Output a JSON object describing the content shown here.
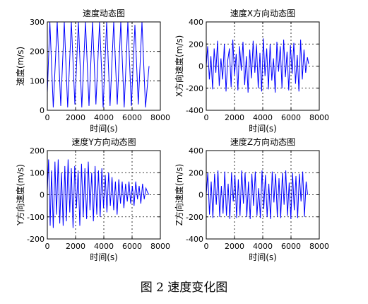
{
  "caption": "图 2  速度变化图",
  "chart_data": [
    {
      "type": "line",
      "title": "速度动态图",
      "xlabel": "时间(s)",
      "ylabel": "速度(m/s)",
      "xlim": [
        0,
        8000
      ],
      "ylim": [
        0,
        300
      ],
      "xticks": [
        0,
        2000,
        4000,
        6000,
        8000
      ],
      "yticks": [
        0,
        100,
        200,
        300
      ],
      "grid": true,
      "series_color": "#0000ff",
      "series": [
        {
          "x": [
            0,
            180,
            420,
            700,
            950,
            1200,
            1440,
            1700,
            1950,
            2200,
            2440,
            2700,
            2950,
            3200,
            3440,
            3700,
            3950,
            4200,
            4440,
            4700,
            4950,
            5200,
            5440,
            5700,
            5950,
            6200,
            6440,
            6700,
            6950,
            7200
          ],
          "y": [
            60,
            300,
            10,
            300,
            15,
            300,
            10,
            300,
            20,
            300,
            10,
            300,
            15,
            300,
            20,
            300,
            10,
            300,
            15,
            300,
            20,
            300,
            10,
            300,
            15,
            290,
            20,
            300,
            10,
            150
          ]
        }
      ]
    },
    {
      "type": "line",
      "title": "速度X方向动态图",
      "xlabel": "时间(s)",
      "ylabel": "X方向速度(m/s)",
      "xlim": [
        0,
        8000
      ],
      "ylim": [
        -400,
        400
      ],
      "xticks": [
        0,
        2000,
        4000,
        6000,
        8000
      ],
      "yticks": [
        -400,
        -200,
        0,
        200,
        400
      ],
      "grid": true,
      "series_color": "#0000ff",
      "series": [
        {
          "x": [
            0,
            100,
            220,
            330,
            450,
            560,
            680,
            800,
            920,
            1040,
            1160,
            1280,
            1400,
            1520,
            1640,
            1760,
            1880,
            2000,
            2120,
            2240,
            2360,
            2480,
            2600,
            2720,
            2840,
            2960,
            3080,
            3200,
            3320,
            3440,
            3560,
            3680,
            3800,
            3920,
            4040,
            4160,
            4280,
            4400,
            4520,
            4640,
            4760,
            4880,
            5000,
            5120,
            5240,
            5360,
            5480,
            5600,
            5720,
            5840,
            5960,
            6080,
            6200,
            6320,
            6440,
            6560,
            6680,
            6800,
            6920,
            7040,
            7160,
            7250
          ],
          "y": [
            0,
            180,
            -120,
            90,
            -210,
            160,
            -60,
            230,
            -180,
            70,
            -120,
            200,
            -230,
            50,
            160,
            -190,
            240,
            -80,
            110,
            -220,
            180,
            -40,
            220,
            -170,
            90,
            -240,
            150,
            -110,
            230,
            -60,
            190,
            -200,
            120,
            -230,
            250,
            -90,
            160,
            -210,
            200,
            -130,
            70,
            -240,
            220,
            -50,
            180,
            -200,
            240,
            -100,
            130,
            -220,
            190,
            -70,
            210,
            -160,
            100,
            -230,
            240,
            -120,
            150,
            -60,
            80,
            20
          ]
        }
      ]
    },
    {
      "type": "line",
      "title": "速度Y方向动态图",
      "xlabel": "时间(s)",
      "ylabel": "Y方向速度(m/s)",
      "xlim": [
        0,
        8000
      ],
      "ylim": [
        -200,
        200
      ],
      "xticks": [
        0,
        2000,
        4000,
        6000,
        8000
      ],
      "yticks": [
        -200,
        -100,
        0,
        100,
        200
      ],
      "grid": true,
      "series_color": "#0000ff",
      "series": [
        {
          "x": [
            0,
            90,
            200,
            300,
            420,
            540,
            650,
            770,
            880,
            1000,
            1120,
            1240,
            1350,
            1470,
            1590,
            1700,
            1820,
            1940,
            2060,
            2180,
            2300,
            2420,
            2540,
            2660,
            2780,
            2900,
            3020,
            3140,
            3260,
            3380,
            3500,
            3620,
            3740,
            3860,
            3980,
            4100,
            4220,
            4340,
            4460,
            4580,
            4700,
            4820,
            4940,
            5060,
            5180,
            5300,
            5420,
            5540,
            5660,
            5780,
            5900,
            6020,
            6140,
            6260,
            6380,
            6500,
            6620,
            6740,
            6860,
            6980,
            7100,
            7200
          ],
          "y": [
            20,
            160,
            -140,
            110,
            -150,
            150,
            -90,
            160,
            -130,
            100,
            -140,
            130,
            -120,
            160,
            -80,
            120,
            -150,
            130,
            -60,
            110,
            -140,
            140,
            -100,
            120,
            -110,
            150,
            -70,
            100,
            -120,
            130,
            -90,
            110,
            -100,
            120,
            -60,
            90,
            -80,
            100,
            -50,
            80,
            -70,
            60,
            -90,
            70,
            -40,
            60,
            -60,
            50,
            -30,
            60,
            -40,
            40,
            -50,
            60,
            -20,
            40,
            -40,
            50,
            -20,
            30,
            10,
            0
          ]
        }
      ]
    },
    {
      "type": "line",
      "title": "速度Z方向动态图",
      "xlabel": "时间(s)",
      "ylabel": "Z方向速度(m/s)",
      "xlim": [
        0,
        8000
      ],
      "ylim": [
        -400,
        400
      ],
      "xticks": [
        0,
        2000,
        4000,
        6000,
        8000
      ],
      "yticks": [
        -400,
        -200,
        0,
        200,
        400
      ],
      "grid": true,
      "series_color": "#0000ff",
      "series": [
        {
          "x": [
            0,
            110,
            230,
            350,
            470,
            590,
            710,
            830,
            950,
            1070,
            1190,
            1310,
            1430,
            1550,
            1670,
            1790,
            1910,
            2030,
            2150,
            2270,
            2390,
            2510,
            2630,
            2750,
            2870,
            2990,
            3110,
            3230,
            3350,
            3470,
            3590,
            3710,
            3830,
            3950,
            4070,
            4190,
            4310,
            4430,
            4550,
            4670,
            4790,
            4910,
            5030,
            5150,
            5270,
            5390,
            5510,
            5630,
            5750,
            5870,
            5990,
            6110,
            6230,
            6350,
            6470,
            6590,
            6710,
            6830,
            6950,
            7070,
            7180
          ],
          "y": [
            0,
            200,
            -180,
            120,
            -210,
            190,
            -90,
            220,
            -200,
            80,
            -170,
            210,
            -190,
            100,
            -220,
            200,
            -60,
            180,
            -210,
            140,
            -190,
            220,
            -80,
            200,
            -200,
            120,
            -220,
            190,
            -100,
            210,
            -190,
            60,
            -210,
            220,
            -130,
            180,
            -200,
            100,
            -220,
            210,
            -70,
            190,
            -200,
            150,
            -210,
            200,
            -90,
            220,
            -190,
            110,
            -220,
            200,
            -140,
            170,
            -210,
            190,
            -60,
            210,
            -200,
            120,
            0
          ]
        }
      ]
    }
  ]
}
